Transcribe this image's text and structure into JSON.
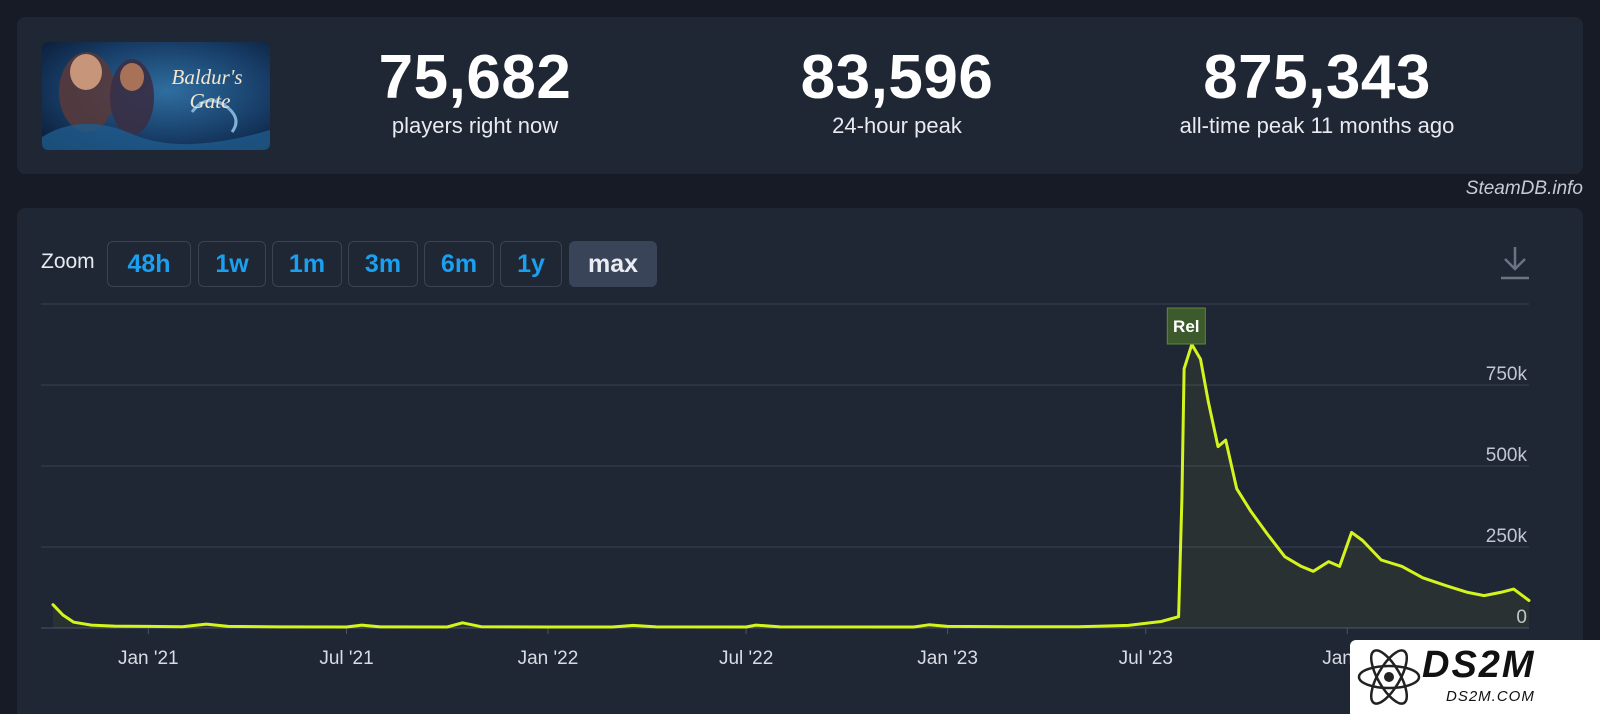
{
  "game": {
    "logo_text_line1": "Baldur's",
    "logo_text_line2": "Gate"
  },
  "stats": [
    {
      "value": "75,682",
      "label": "players right now"
    },
    {
      "value": "83,596",
      "label": "24-hour peak"
    },
    {
      "value": "875,343",
      "label": "all-time peak 11 months ago"
    }
  ],
  "credit": "SteamDB.info",
  "zoom": {
    "label": "Zoom",
    "buttons": [
      "48h",
      "1w",
      "1m",
      "3m",
      "6m",
      "1y",
      "max"
    ],
    "active": "max"
  },
  "colors": {
    "line": "#d4f41e",
    "accent": "#1aa0ee",
    "background": "#1f2634"
  },
  "icons": {
    "download": "download-icon"
  },
  "watermark": {
    "big": "DS2M",
    "small": "DS2M.COM"
  },
  "chart_data": {
    "type": "line",
    "title": "",
    "xlabel": "",
    "ylabel": "",
    "ylim": [
      0,
      1000000
    ],
    "y_ticks": [
      {
        "value": 0,
        "label": "0"
      },
      {
        "value": 250000,
        "label": "250k"
      },
      {
        "value": 500000,
        "label": "500k"
      },
      {
        "value": 750000,
        "label": "750k"
      }
    ],
    "x_ticks": [
      {
        "date": "2021-01-01",
        "label": "Jan '21"
      },
      {
        "date": "2021-07-01",
        "label": "Jul '21"
      },
      {
        "date": "2022-01-01",
        "label": "Jan '22"
      },
      {
        "date": "2022-07-01",
        "label": "Jul '22"
      },
      {
        "date": "2023-01-01",
        "label": "Jan '23"
      },
      {
        "date": "2023-07-01",
        "label": "Jul '23"
      },
      {
        "date": "2024-01-01",
        "label": "Jan '2"
      }
    ],
    "xlim": [
      "2020-09-25",
      "2024-06-15"
    ],
    "annotation": {
      "label": "Rel",
      "date": "2023-08-07"
    },
    "grid": true,
    "series": [
      {
        "values": [
          [
            "2020-10-06",
            72000
          ],
          [
            "2020-10-15",
            40000
          ],
          [
            "2020-10-25",
            18000
          ],
          [
            "2020-11-10",
            9000
          ],
          [
            "2020-12-01",
            6000
          ],
          [
            "2021-01-01",
            5000
          ],
          [
            "2021-02-01",
            4000
          ],
          [
            "2021-02-23",
            12000
          ],
          [
            "2021-03-15",
            5000
          ],
          [
            "2021-05-01",
            3500
          ],
          [
            "2021-07-01",
            3000
          ],
          [
            "2021-07-15",
            9000
          ],
          [
            "2021-08-01",
            3500
          ],
          [
            "2021-10-01",
            3000
          ],
          [
            "2021-10-15",
            16000
          ],
          [
            "2021-11-01",
            4000
          ],
          [
            "2022-01-01",
            3000
          ],
          [
            "2022-03-01",
            3000
          ],
          [
            "2022-03-20",
            8000
          ],
          [
            "2022-04-10",
            3500
          ],
          [
            "2022-07-01",
            3000
          ],
          [
            "2022-07-10",
            9000
          ],
          [
            "2022-08-01",
            3500
          ],
          [
            "2022-12-01",
            3000
          ],
          [
            "2022-12-15",
            10000
          ],
          [
            "2023-01-01",
            5000
          ],
          [
            "2023-03-01",
            4000
          ],
          [
            "2023-05-01",
            4000
          ],
          [
            "2023-06-15",
            8000
          ],
          [
            "2023-07-15",
            20000
          ],
          [
            "2023-07-31",
            35000
          ],
          [
            "2023-08-03",
            400000
          ],
          [
            "2023-08-05",
            800000
          ],
          [
            "2023-08-12",
            875343
          ],
          [
            "2023-08-20",
            830000
          ],
          [
            "2023-08-27",
            700000
          ],
          [
            "2023-09-05",
            560000
          ],
          [
            "2023-09-12",
            580000
          ],
          [
            "2023-09-22",
            430000
          ],
          [
            "2023-10-05",
            360000
          ],
          [
            "2023-10-20",
            290000
          ],
          [
            "2023-11-05",
            220000
          ],
          [
            "2023-11-20",
            190000
          ],
          [
            "2023-12-01",
            175000
          ],
          [
            "2023-12-15",
            205000
          ],
          [
            "2023-12-25",
            190000
          ],
          [
            "2024-01-05",
            295000
          ],
          [
            "2024-01-15",
            270000
          ],
          [
            "2024-02-01",
            210000
          ],
          [
            "2024-02-20",
            190000
          ],
          [
            "2024-03-10",
            155000
          ],
          [
            "2024-04-01",
            130000
          ],
          [
            "2024-04-20",
            110000
          ],
          [
            "2024-05-05",
            100000
          ],
          [
            "2024-05-20",
            110000
          ],
          [
            "2024-06-01",
            120000
          ],
          [
            "2024-06-15",
            85000
          ]
        ]
      }
    ]
  }
}
